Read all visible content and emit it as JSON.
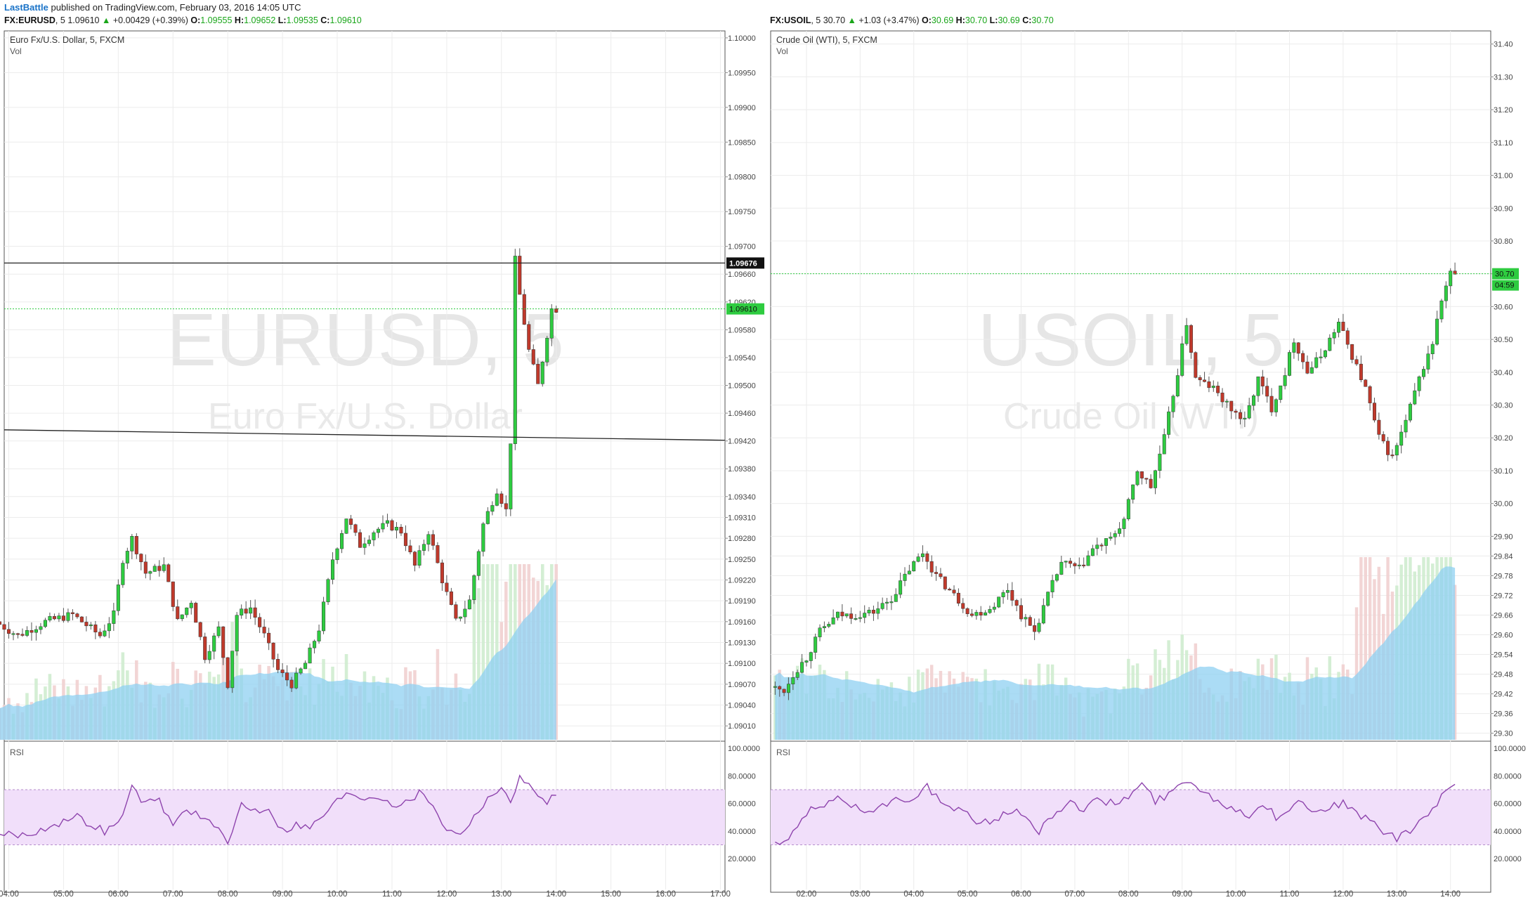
{
  "header": {
    "author": "LastBattle",
    "published_text": "published on TradingView.com, February 03, 2016 14:05 UTC"
  },
  "panels": [
    {
      "symbol": "FX:EURUSD",
      "interval": "5",
      "last": "1.09610",
      "change": "+0.00429 (+0.39%)",
      "o_label": "O:",
      "o": "1.09555",
      "h_label": "H:",
      "h": "1.09652",
      "l_label": "L:",
      "l": "1.09535",
      "c_label": "C:",
      "c": "1.09610",
      "name": "Euro Fx/U.S. Dollar, 5, FXCM",
      "vol_label": "Vol",
      "rsi_label": "RSI",
      "watermark_symbol": "EURUSD, 5",
      "watermark_name": "Euro Fx/U.S. Dollar",
      "price_axis": [
        "1.10000",
        "1.09950",
        "1.09900",
        "1.09850",
        "1.09800",
        "1.09750",
        "1.09700",
        "1.09660",
        "1.09620",
        "1.09580",
        "1.09540",
        "1.09500",
        "1.09460",
        "1.09420",
        "1.09380",
        "1.09340",
        "1.09310",
        "1.09280",
        "1.09250",
        "1.09220",
        "1.09190",
        "1.09160",
        "1.09130",
        "1.09100",
        "1.09070",
        "1.09040",
        "1.09010"
      ],
      "rsi_axis": [
        "100.0000",
        "80.0000",
        "60.0000",
        "40.0000",
        "20.0000"
      ],
      "time_axis": [
        "04:00",
        "05:00",
        "06:00",
        "07:00",
        "08:00",
        "09:00",
        "10:00",
        "11:00",
        "12:00",
        "13:00",
        "14:00",
        "15:00",
        "16:00",
        "17:00"
      ],
      "hline_label": "1.09676",
      "price_label": "1.09610"
    },
    {
      "symbol": "FX:USOIL",
      "interval": "5",
      "last": "30.70",
      "change": "+1.03 (+3.47%)",
      "o_label": "O:",
      "o": "30.69",
      "h_label": "H:",
      "h": "30.70",
      "l_label": "L:",
      "l": "30.69",
      "c_label": "C:",
      "c": "30.70",
      "name": "Crude Oil (WTI), 5, FXCM",
      "vol_label": "Vol",
      "rsi_label": "RSI",
      "watermark_symbol": "USOIL, 5",
      "watermark_name": "Crude Oil (WTI)",
      "price_axis": [
        "31.40",
        "31.30",
        "31.20",
        "31.10",
        "31.00",
        "30.90",
        "30.80",
        "30.70",
        "30.60",
        "30.50",
        "30.40",
        "30.30",
        "30.20",
        "30.10",
        "30.00",
        "29.90",
        "29.84",
        "29.78",
        "29.72",
        "29.66",
        "29.60",
        "29.54",
        "29.48",
        "29.42",
        "29.36",
        "29.30"
      ],
      "rsi_axis": [
        "100.0000",
        "80.0000",
        "60.0000",
        "40.0000",
        "20.0000"
      ],
      "time_axis": [
        "02:00",
        "03:00",
        "04:00",
        "05:00",
        "06:00",
        "07:00",
        "08:00",
        "09:00",
        "10:00",
        "11:00",
        "12:00",
        "13:00",
        "14:00"
      ],
      "price_label": "30.70",
      "countdown_label": "04:59"
    }
  ],
  "colors": {
    "up": "#2ecc40",
    "down": "#c0392b",
    "wick": "#555555",
    "grid": "#ececec",
    "volume_up": "#cfeccf",
    "volume_down": "#f1d0d0",
    "volume_ma": "#8fd0f2",
    "rsi_line": "#8e44ad",
    "rsi_band": "#f1dffa",
    "last_price": "#2ecc40"
  },
  "chart_data": [
    {
      "type": "candlestick",
      "title": "Euro Fx/U.S. Dollar, 5, FXCM",
      "x_range": [
        "04:00",
        "17:00"
      ],
      "ylim": [
        1.0899,
        1.1001
      ],
      "session_start": "03:50",
      "bar_minutes": 5,
      "anchors": [
        [
          "03:50",
          1.0916
        ],
        [
          "04:15",
          1.0914
        ],
        [
          "04:45",
          1.0916
        ],
        [
          "05:15",
          1.0917
        ],
        [
          "05:45",
          1.0914
        ],
        [
          "06:00",
          1.0917
        ],
        [
          "06:10",
          1.0925
        ],
        [
          "06:20",
          1.0928
        ],
        [
          "06:35",
          1.0923
        ],
        [
          "06:55",
          1.0924
        ],
        [
          "07:10",
          1.0916
        ],
        [
          "07:25",
          1.0919
        ],
        [
          "07:40",
          1.0911
        ],
        [
          "07:55",
          1.0915
        ],
        [
          "08:05",
          1.0907
        ],
        [
          "08:15",
          1.0917
        ],
        [
          "08:30",
          1.0918
        ],
        [
          "08:45",
          1.0914
        ],
        [
          "09:00",
          1.0909
        ],
        [
          "09:15",
          1.0907
        ],
        [
          "09:30",
          1.091
        ],
        [
          "09:45",
          1.0915
        ],
        [
          "10:00",
          1.0925
        ],
        [
          "10:15",
          1.0931
        ],
        [
          "10:30",
          1.0927
        ],
        [
          "10:45",
          1.0929
        ],
        [
          "11:00",
          1.093
        ],
        [
          "11:15",
          1.0929
        ],
        [
          "11:30",
          1.0924
        ],
        [
          "11:45",
          1.0929
        ],
        [
          "12:00",
          1.0922
        ],
        [
          "12:15",
          1.0916
        ],
        [
          "12:30",
          1.0919
        ],
        [
          "12:45",
          1.093
        ],
        [
          "13:00",
          1.0935
        ],
        [
          "13:10",
          1.0932
        ],
        [
          "13:15",
          1.0942
        ],
        [
          "13:20",
          1.0968
        ],
        [
          "13:25",
          1.0963
        ],
        [
          "13:35",
          1.0955
        ],
        [
          "13:45",
          1.095
        ],
        [
          "14:00",
          1.0961
        ]
      ],
      "marked_levels": [
        1.09676
      ],
      "trendline": [
        [
          "03:50",
          1.09436
        ],
        [
          "17:00",
          1.09421
        ]
      ],
      "last_price": 1.0961,
      "rsi": {
        "ylim": [
          0,
          100
        ],
        "levels": [
          70,
          30
        ],
        "anchors": [
          [
            "03:50",
            38
          ],
          [
            "04:20",
            37
          ],
          [
            "04:45",
            44
          ],
          [
            "05:15",
            50
          ],
          [
            "05:45",
            40
          ],
          [
            "06:00",
            45
          ],
          [
            "06:15",
            71
          ],
          [
            "06:30",
            60
          ],
          [
            "06:45",
            62
          ],
          [
            "07:00",
            44
          ],
          [
            "07:15",
            57
          ],
          [
            "07:30",
            50
          ],
          [
            "07:45",
            44
          ],
          [
            "08:00",
            30
          ],
          [
            "08:15",
            60
          ],
          [
            "08:30",
            55
          ],
          [
            "08:45",
            57
          ],
          [
            "09:00",
            40
          ],
          [
            "09:15",
            45
          ],
          [
            "09:30",
            42
          ],
          [
            "09:45",
            52
          ],
          [
            "10:00",
            62
          ],
          [
            "10:15",
            68
          ],
          [
            "10:30",
            64
          ],
          [
            "10:45",
            66
          ],
          [
            "11:00",
            60
          ],
          [
            "11:15",
            60
          ],
          [
            "11:30",
            68
          ],
          [
            "11:45",
            60
          ],
          [
            "12:00",
            40
          ],
          [
            "12:15",
            39
          ],
          [
            "12:30",
            50
          ],
          [
            "12:45",
            65
          ],
          [
            "13:00",
            70
          ],
          [
            "13:10",
            60
          ],
          [
            "13:20",
            82
          ],
          [
            "13:35",
            68
          ],
          [
            "13:50",
            62
          ],
          [
            "14:00",
            67
          ]
        ]
      }
    },
    {
      "type": "candlestick",
      "title": "Crude Oil (WTI), 5, FXCM",
      "x_range": [
        "02:00",
        "14:00"
      ],
      "ylim": [
        29.28,
        31.44
      ],
      "session_start": "01:25",
      "bar_minutes": 5,
      "anchors": [
        [
          "01:25",
          29.44
        ],
        [
          "01:40",
          29.43
        ],
        [
          "01:50",
          29.48
        ],
        [
          "02:05",
          29.53
        ],
        [
          "02:20",
          29.61
        ],
        [
          "02:40",
          29.66
        ],
        [
          "03:00",
          29.66
        ],
        [
          "03:20",
          29.67
        ],
        [
          "03:40",
          29.71
        ],
        [
          "04:00",
          29.8
        ],
        [
          "04:15",
          29.85
        ],
        [
          "04:30",
          29.78
        ],
        [
          "04:50",
          29.72
        ],
        [
          "05:10",
          29.66
        ],
        [
          "05:30",
          29.68
        ],
        [
          "05:50",
          29.74
        ],
        [
          "06:05",
          29.66
        ],
        [
          "06:20",
          29.61
        ],
        [
          "06:35",
          29.72
        ],
        [
          "06:50",
          29.82
        ],
        [
          "07:10",
          29.8
        ],
        [
          "07:25",
          29.86
        ],
        [
          "07:45",
          29.89
        ],
        [
          "08:00",
          29.95
        ],
        [
          "08:15",
          30.1
        ],
        [
          "08:30",
          30.05
        ],
        [
          "08:45",
          30.2
        ],
        [
          "09:00",
          30.4
        ],
        [
          "09:10",
          30.55
        ],
        [
          "09:20",
          30.38
        ],
        [
          "09:40",
          30.35
        ],
        [
          "09:55",
          30.3
        ],
        [
          "10:15",
          30.25
        ],
        [
          "10:30",
          30.38
        ],
        [
          "10:45",
          30.29
        ],
        [
          "11:00",
          30.4
        ],
        [
          "11:10",
          30.5
        ],
        [
          "11:25",
          30.4
        ],
        [
          "11:40",
          30.45
        ],
        [
          "12:00",
          30.55
        ],
        [
          "12:15",
          30.45
        ],
        [
          "12:30",
          30.35
        ],
        [
          "12:45",
          30.2
        ],
        [
          "13:00",
          30.14
        ],
        [
          "13:15",
          30.25
        ],
        [
          "13:30",
          30.38
        ],
        [
          "13:45",
          30.49
        ],
        [
          "13:55",
          30.62
        ],
        [
          "14:05",
          30.7
        ]
      ],
      "last_price": 30.7,
      "rsi": {
        "ylim": [
          0,
          100
        ],
        "levels": [
          70,
          30
        ],
        "anchors": [
          [
            "01:25",
            31
          ],
          [
            "01:40",
            32
          ],
          [
            "01:50",
            45
          ],
          [
            "02:05",
            55
          ],
          [
            "02:20",
            58
          ],
          [
            "02:40",
            64
          ],
          [
            "03:00",
            55
          ],
          [
            "03:20",
            57
          ],
          [
            "03:40",
            62
          ],
          [
            "04:00",
            65
          ],
          [
            "04:15",
            73
          ],
          [
            "04:30",
            60
          ],
          [
            "04:50",
            55
          ],
          [
            "05:10",
            47
          ],
          [
            "05:30",
            48
          ],
          [
            "05:50",
            56
          ],
          [
            "06:05",
            48
          ],
          [
            "06:20",
            40
          ],
          [
            "06:35",
            52
          ],
          [
            "06:50",
            60
          ],
          [
            "07:10",
            57
          ],
          [
            "07:25",
            62
          ],
          [
            "07:45",
            60
          ],
          [
            "08:00",
            65
          ],
          [
            "08:15",
            74
          ],
          [
            "08:30",
            62
          ],
          [
            "08:45",
            66
          ],
          [
            "09:00",
            75
          ],
          [
            "09:10",
            78
          ],
          [
            "09:20",
            70
          ],
          [
            "09:40",
            62
          ],
          [
            "09:55",
            57
          ],
          [
            "10:15",
            52
          ],
          [
            "10:30",
            60
          ],
          [
            "10:45",
            50
          ],
          [
            "11:00",
            57
          ],
          [
            "11:10",
            62
          ],
          [
            "11:25",
            55
          ],
          [
            "11:40",
            57
          ],
          [
            "12:00",
            60
          ],
          [
            "12:15",
            52
          ],
          [
            "12:30",
            48
          ],
          [
            "12:45",
            40
          ],
          [
            "13:00",
            34
          ],
          [
            "13:15",
            40
          ],
          [
            "13:30",
            50
          ],
          [
            "13:45",
            58
          ],
          [
            "13:55",
            70
          ],
          [
            "14:05",
            71
          ]
        ]
      }
    }
  ]
}
